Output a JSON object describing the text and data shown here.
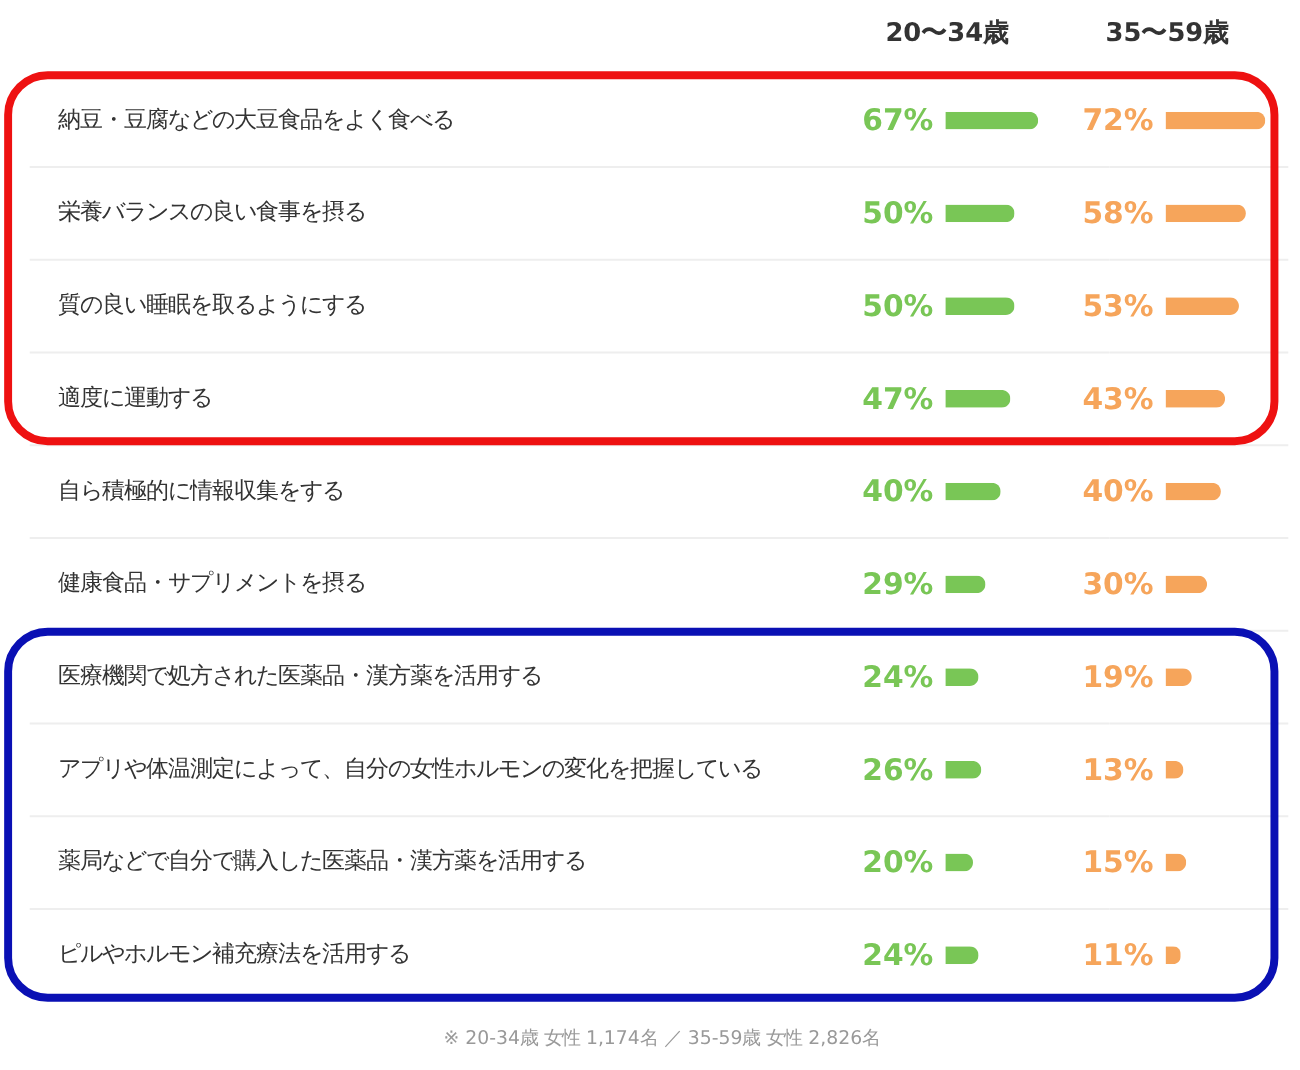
{
  "chart_data": [
    {
      "type": "bar",
      "orientation": "horizontal",
      "categories": [
        "納豆・豆腐などの大豆食品をよく食べる",
        "栄養バランスの良い食事を摂る",
        "質の良い睡眠を取るようにする",
        "適度に運動する",
        "自ら積極的に情報収集をする",
        "健康食品・サプリメントを摂る",
        "医療機関で処方された医薬品・漢方薬を活用する",
        "アプリや体温測定によって、自分の女性ホルモンの変化を把握している",
        "薬局などで自分で購入した医薬品・漢方薬を活用する",
        "ピルやホルモン補充療法を活用する"
      ],
      "series": [
        {
          "name": "20〜34歳",
          "color": "#79c656",
          "values": [
            67,
            50,
            50,
            47,
            40,
            29,
            24,
            26,
            20,
            24
          ],
          "value_labels": [
            "67%",
            "50%",
            "50%",
            "47%",
            "40%",
            "29%",
            "24%",
            "26%",
            "20%",
            "24%"
          ]
        }
      ],
      "grid": "y",
      "tick_labels": "y",
      "annotations": [
        "※ 20-34歳 女性 1,174名 ／ 35-59歳 女性 2,826名"
      ]
    },
    {
      "type": "bar",
      "orientation": "horizontal",
      "categories": [
        null,
        null,
        null,
        null,
        null,
        null,
        null,
        null,
        null,
        null
      ],
      "series": [
        {
          "name": "35〜59歳",
          "color": "#f6a55b",
          "values": [
            72,
            58,
            53,
            43,
            40,
            30,
            19,
            13,
            15,
            11
          ],
          "value_labels": [
            "72%",
            "58%",
            "53%",
            "43%",
            "40%",
            "30%",
            "19%",
            "13%",
            "15%",
            "11%"
          ]
        }
      ],
      "grid": "y",
      "tick_labels": false
    }
  ]
}
